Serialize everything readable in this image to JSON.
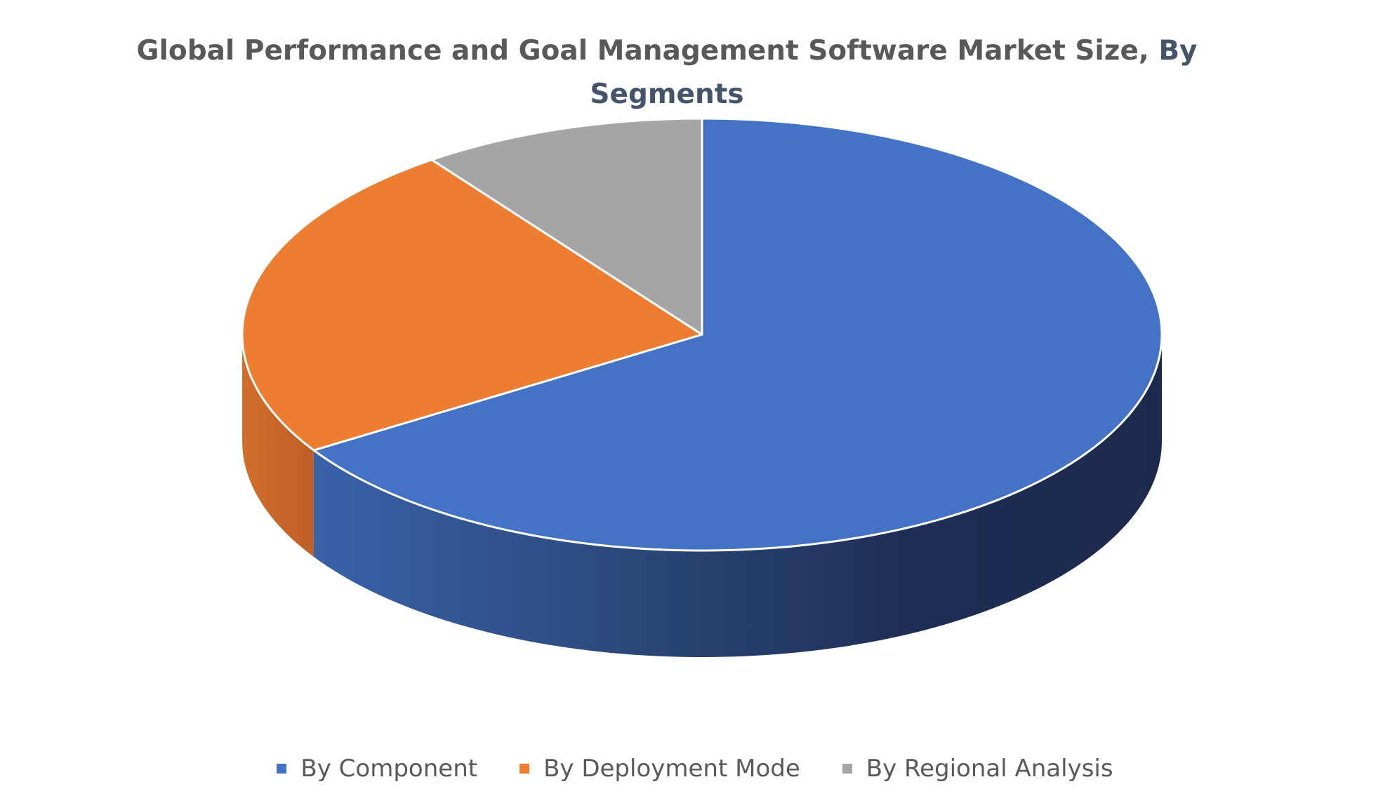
{
  "chart_data": {
    "type": "pie",
    "title": "Global Performance and Goal Management Software Market Size, By Segments",
    "title_parts": [
      "Global Performance and Goal Management Software Market Size,",
      "By Segments"
    ],
    "is_3d": true,
    "slices": [
      {
        "label": "By Component",
        "value": 66,
        "color": "#4472C4",
        "dark_color": "#1E2E55"
      },
      {
        "label": "By Deployment Mode",
        "value": 24,
        "color": "#ED7D31",
        "dark_color": "#C5622A"
      },
      {
        "label": "By Regional Analysis",
        "value": 10,
        "color": "#A5A5A5",
        "dark_color": "#7F7F7F"
      }
    ],
    "legend_position": "bottom"
  }
}
